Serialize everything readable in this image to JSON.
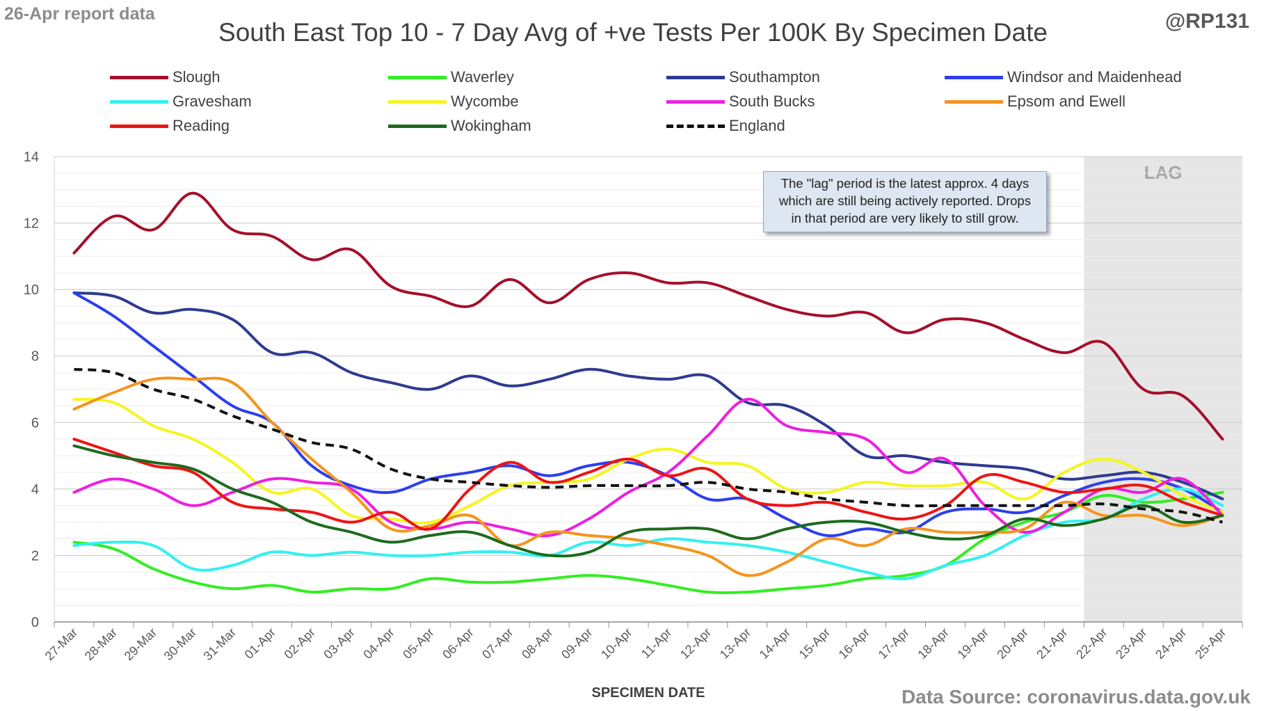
{
  "report_date": "26-Apr report data",
  "handle": "@RP131",
  "source": "Data Source: coronavirus.data.gov.uk",
  "annotation": {
    "line1": "The \"lag\" period is the latest approx. 4 days",
    "line2": "which are still being actively reported.  Drops",
    "line3": "in that period are very likely to still grow."
  },
  "chart_data": {
    "type": "line",
    "title": "South East Top 10 - 7 Day Avg of +ve Tests Per 100K By Specimen Date",
    "xlabel": "SPECIMEN DATE",
    "ylabel": "",
    "ylim": [
      0,
      14
    ],
    "yticks": [
      0,
      2,
      4,
      6,
      8,
      10,
      12,
      14
    ],
    "grid": true,
    "legend_position": "top",
    "lag_label": "LAG",
    "lag_start": "22-Apr",
    "categories": [
      "27-Mar",
      "28-Mar",
      "29-Mar",
      "30-Mar",
      "31-Mar",
      "01-Apr",
      "02-Apr",
      "03-Apr",
      "04-Apr",
      "05-Apr",
      "06-Apr",
      "07-Apr",
      "08-Apr",
      "09-Apr",
      "10-Apr",
      "11-Apr",
      "12-Apr",
      "13-Apr",
      "14-Apr",
      "15-Apr",
      "16-Apr",
      "17-Apr",
      "18-Apr",
      "19-Apr",
      "20-Apr",
      "21-Apr",
      "22-Apr",
      "23-Apr",
      "24-Apr",
      "25-Apr"
    ],
    "series": [
      {
        "name": "Slough",
        "color": "#a50f2a",
        "dashed": false,
        "values": [
          11.1,
          12.2,
          11.8,
          12.9,
          11.8,
          11.6,
          10.9,
          11.2,
          10.1,
          9.8,
          9.5,
          10.3,
          9.6,
          10.3,
          10.5,
          10.2,
          10.2,
          9.8,
          9.4,
          9.2,
          9.3,
          8.7,
          9.1,
          9.0,
          8.5,
          8.1,
          8.4,
          7.0,
          6.8,
          5.5
        ]
      },
      {
        "name": "Waverley",
        "color": "#33ee22",
        "dashed": false,
        "values": [
          2.4,
          2.2,
          1.6,
          1.2,
          1.0,
          1.1,
          0.9,
          1.0,
          1.0,
          1.3,
          1.2,
          1.2,
          1.3,
          1.4,
          1.3,
          1.1,
          0.9,
          0.9,
          1.0,
          1.1,
          1.3,
          1.4,
          1.7,
          2.5,
          3.0,
          3.3,
          3.8,
          3.6,
          3.7,
          3.9
        ]
      },
      {
        "name": "Southampton",
        "color": "#2e3b8f",
        "dashed": false,
        "values": [
          9.9,
          9.8,
          9.3,
          9.4,
          9.1,
          8.1,
          8.1,
          7.5,
          7.2,
          7.0,
          7.4,
          7.1,
          7.3,
          7.6,
          7.4,
          7.3,
          7.4,
          6.6,
          6.5,
          5.9,
          5.0,
          5.0,
          4.8,
          4.7,
          4.6,
          4.3,
          4.4,
          4.5,
          4.2,
          3.7
        ]
      },
      {
        "name": "Windsor and Maidenhead",
        "color": "#2c3ef0",
        "dashed": false,
        "values": [
          9.9,
          9.2,
          8.3,
          7.4,
          6.5,
          6.0,
          4.7,
          4.1,
          3.9,
          4.3,
          4.5,
          4.7,
          4.4,
          4.7,
          4.8,
          4.4,
          3.7,
          3.7,
          3.1,
          2.6,
          2.8,
          2.7,
          3.3,
          3.4,
          3.3,
          3.8,
          4.2,
          4.3,
          4.0,
          3.3
        ]
      },
      {
        "name": "Gravesham",
        "color": "#33f0f0",
        "dashed": false,
        "values": [
          2.3,
          2.4,
          2.3,
          1.6,
          1.7,
          2.1,
          2.0,
          2.1,
          2.0,
          2.0,
          2.1,
          2.1,
          2.0,
          2.4,
          2.3,
          2.5,
          2.4,
          2.3,
          2.1,
          1.8,
          1.5,
          1.3,
          1.7,
          2.0,
          2.6,
          3.0,
          3.1,
          3.7,
          4.0,
          3.5
        ]
      },
      {
        "name": "Wycombe",
        "color": "#f5f521",
        "dashed": false,
        "values": [
          6.7,
          6.6,
          5.9,
          5.5,
          4.8,
          3.9,
          4.0,
          3.2,
          3.1,
          3.0,
          3.5,
          4.1,
          4.2,
          4.3,
          4.9,
          5.2,
          4.8,
          4.7,
          4.0,
          3.9,
          4.2,
          4.1,
          4.1,
          4.2,
          3.7,
          4.5,
          4.9,
          4.5,
          3.8,
          3.3
        ]
      },
      {
        "name": "South Bucks",
        "color": "#ee1ee0",
        "dashed": false,
        "values": [
          3.9,
          4.3,
          4.0,
          3.5,
          3.9,
          4.3,
          4.2,
          4.0,
          3.0,
          2.8,
          3.0,
          2.8,
          2.6,
          3.1,
          3.9,
          4.5,
          5.6,
          6.7,
          5.9,
          5.7,
          5.5,
          4.5,
          4.9,
          3.5,
          2.7,
          3.3,
          4.0,
          3.9,
          4.3,
          3.2
        ]
      },
      {
        "name": "Epsom and Ewell",
        "color": "#f5941d",
        "dashed": false,
        "values": [
          6.4,
          6.9,
          7.3,
          7.3,
          7.2,
          6.0,
          4.9,
          3.9,
          2.8,
          2.9,
          3.2,
          2.3,
          2.7,
          2.6,
          2.5,
          2.3,
          2.0,
          1.4,
          1.8,
          2.5,
          2.3,
          2.8,
          2.7,
          2.7,
          2.8,
          3.6,
          3.2,
          3.2,
          2.9,
          3.2
        ]
      },
      {
        "name": "Reading",
        "color": "#ee1414",
        "dashed": false,
        "values": [
          5.5,
          5.1,
          4.7,
          4.5,
          3.6,
          3.4,
          3.3,
          3.0,
          3.3,
          2.8,
          4.0,
          4.8,
          4.2,
          4.5,
          4.9,
          4.4,
          4.6,
          3.7,
          3.5,
          3.6,
          3.3,
          3.1,
          3.5,
          4.4,
          4.2,
          3.9,
          4.0,
          4.1,
          3.6,
          3.2
        ]
      },
      {
        "name": "Wokingham",
        "color": "#1d6a1d",
        "dashed": false,
        "values": [
          5.3,
          5.0,
          4.8,
          4.6,
          4.0,
          3.6,
          3.0,
          2.7,
          2.4,
          2.6,
          2.7,
          2.3,
          2.0,
          2.1,
          2.7,
          2.8,
          2.8,
          2.5,
          2.8,
          3.0,
          3.0,
          2.7,
          2.5,
          2.6,
          3.1,
          2.9,
          3.1,
          3.5,
          3.0,
          3.2
        ]
      },
      {
        "name": "England",
        "color": "#111111",
        "dashed": true,
        "values": [
          7.6,
          7.5,
          7.0,
          6.7,
          6.2,
          5.8,
          5.4,
          5.2,
          4.6,
          4.3,
          4.2,
          4.1,
          4.05,
          4.1,
          4.1,
          4.1,
          4.2,
          4.0,
          3.9,
          3.7,
          3.6,
          3.5,
          3.5,
          3.5,
          3.5,
          3.5,
          3.55,
          3.4,
          3.3,
          3.0
        ]
      }
    ]
  }
}
